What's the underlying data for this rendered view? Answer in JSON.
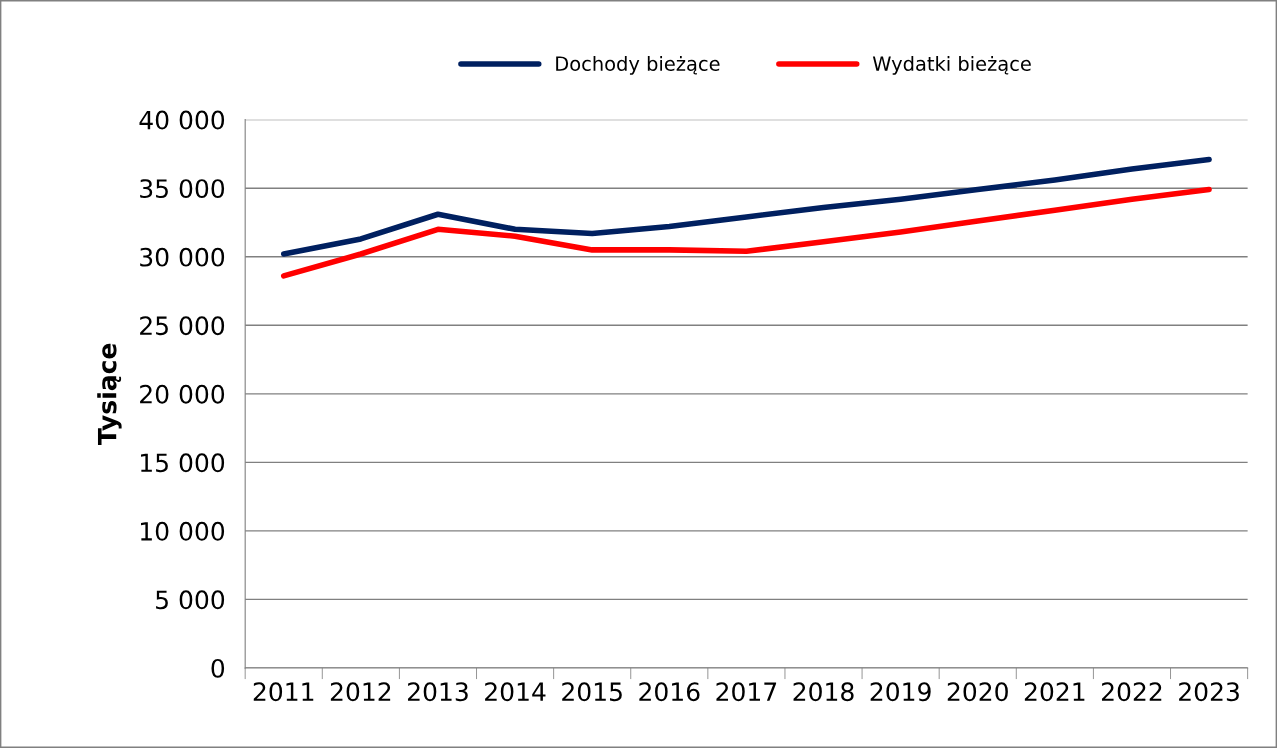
{
  "chart_data": {
    "type": "line",
    "ylabel": "Tysiące",
    "categories": [
      "2011",
      "2012",
      "2013",
      "2014",
      "2015",
      "2016",
      "2017",
      "2018",
      "2019",
      "2020",
      "2021",
      "2022",
      "2023"
    ],
    "series": [
      {
        "name": "Dochody bieżące",
        "color": "#002060",
        "values": [
          30200,
          31300,
          33100,
          32000,
          31700,
          32200,
          32900,
          33600,
          34200,
          34900,
          35600,
          36400,
          37100
        ]
      },
      {
        "name": "Wydatki bieżące",
        "color": "#ff0000",
        "values": [
          28600,
          30200,
          32000,
          31500,
          30500,
          30500,
          30400,
          31100,
          31800,
          32600,
          33400,
          34200,
          34900
        ]
      }
    ],
    "ylim": [
      0,
      40000
    ],
    "yticks": [
      {
        "value": 0,
        "label": "0"
      },
      {
        "value": 5000,
        "label": "5 000"
      },
      {
        "value": 10000,
        "label": "10 000"
      },
      {
        "value": 15000,
        "label": "15 000"
      },
      {
        "value": 20000,
        "label": "20 000"
      },
      {
        "value": 25000,
        "label": "25 000"
      },
      {
        "value": 30000,
        "label": "30 000"
      },
      {
        "value": 35000,
        "label": "35 000"
      },
      {
        "value": 40000,
        "label": "40 000"
      }
    ],
    "grid": "y",
    "legend": "top",
    "marker": "none",
    "line_style": "solid"
  }
}
